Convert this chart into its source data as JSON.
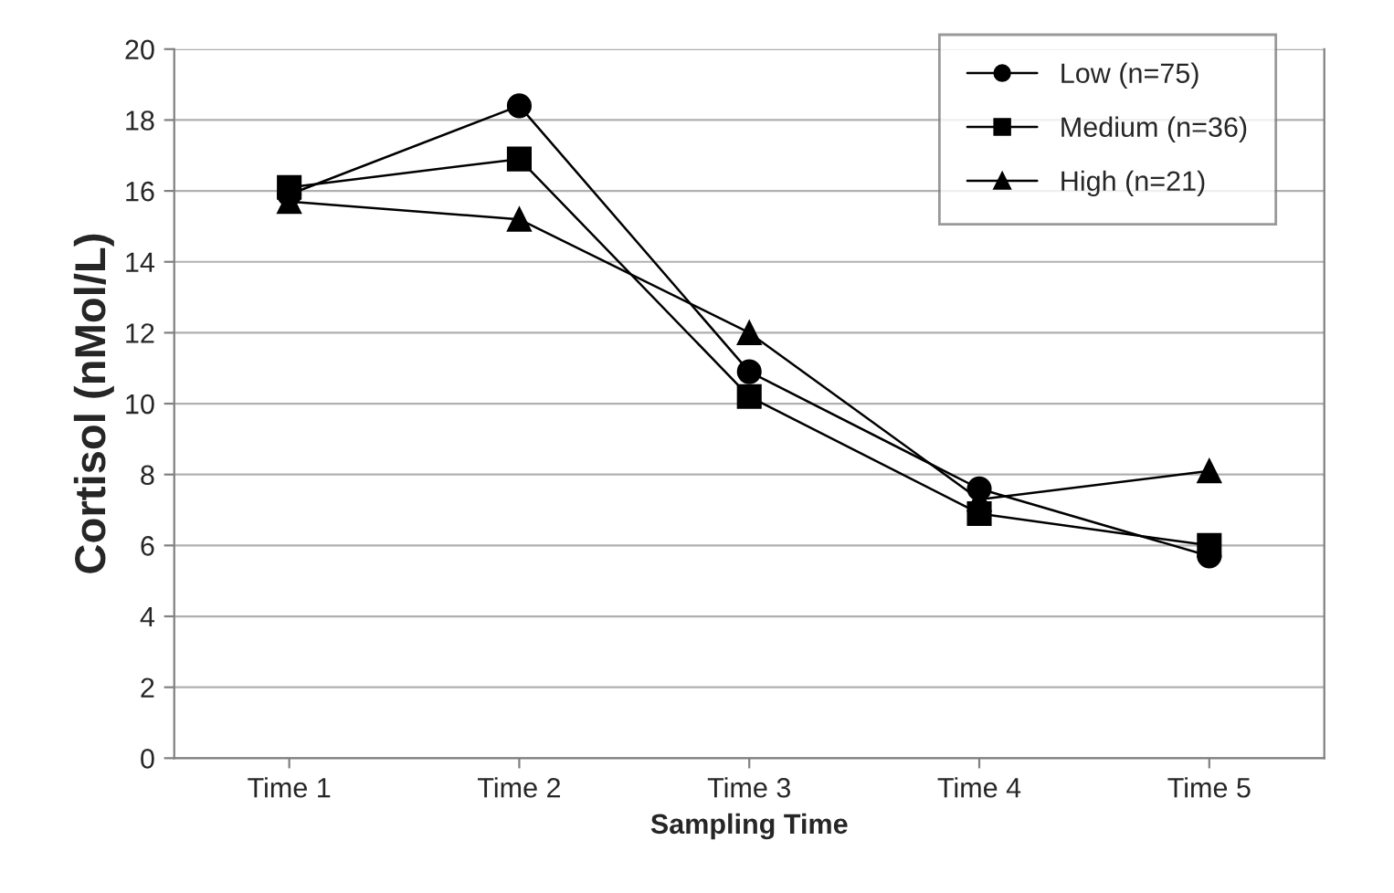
{
  "chart_data": {
    "type": "line",
    "xlabel": "Sampling Time",
    "ylabel": "Cortisol (nMol/L)",
    "categories": [
      "Time 1",
      "Time 2",
      "Time 3",
      "Time 4",
      "Time 5"
    ],
    "series": [
      {
        "name": "Low (n=75)",
        "color": "#000000",
        "marker": "circle",
        "values": [
          15.9,
          18.4,
          10.9,
          7.6,
          5.7
        ]
      },
      {
        "name": "Medium (n=36)",
        "color": "#000000",
        "marker": "square",
        "values": [
          16.1,
          16.9,
          10.2,
          6.9,
          6.0
        ]
      },
      {
        "name": "High (n=21)",
        "color": "#000000",
        "marker": "triangle",
        "values": [
          15.7,
          15.2,
          12.0,
          7.3,
          8.1
        ]
      }
    ],
    "ylim": [
      0,
      20
    ],
    "yticks": [
      0,
      2,
      4,
      6,
      8,
      10,
      12,
      14,
      16,
      18,
      20
    ],
    "grid": "y",
    "legend": "top right",
    "line_style": "solid"
  }
}
